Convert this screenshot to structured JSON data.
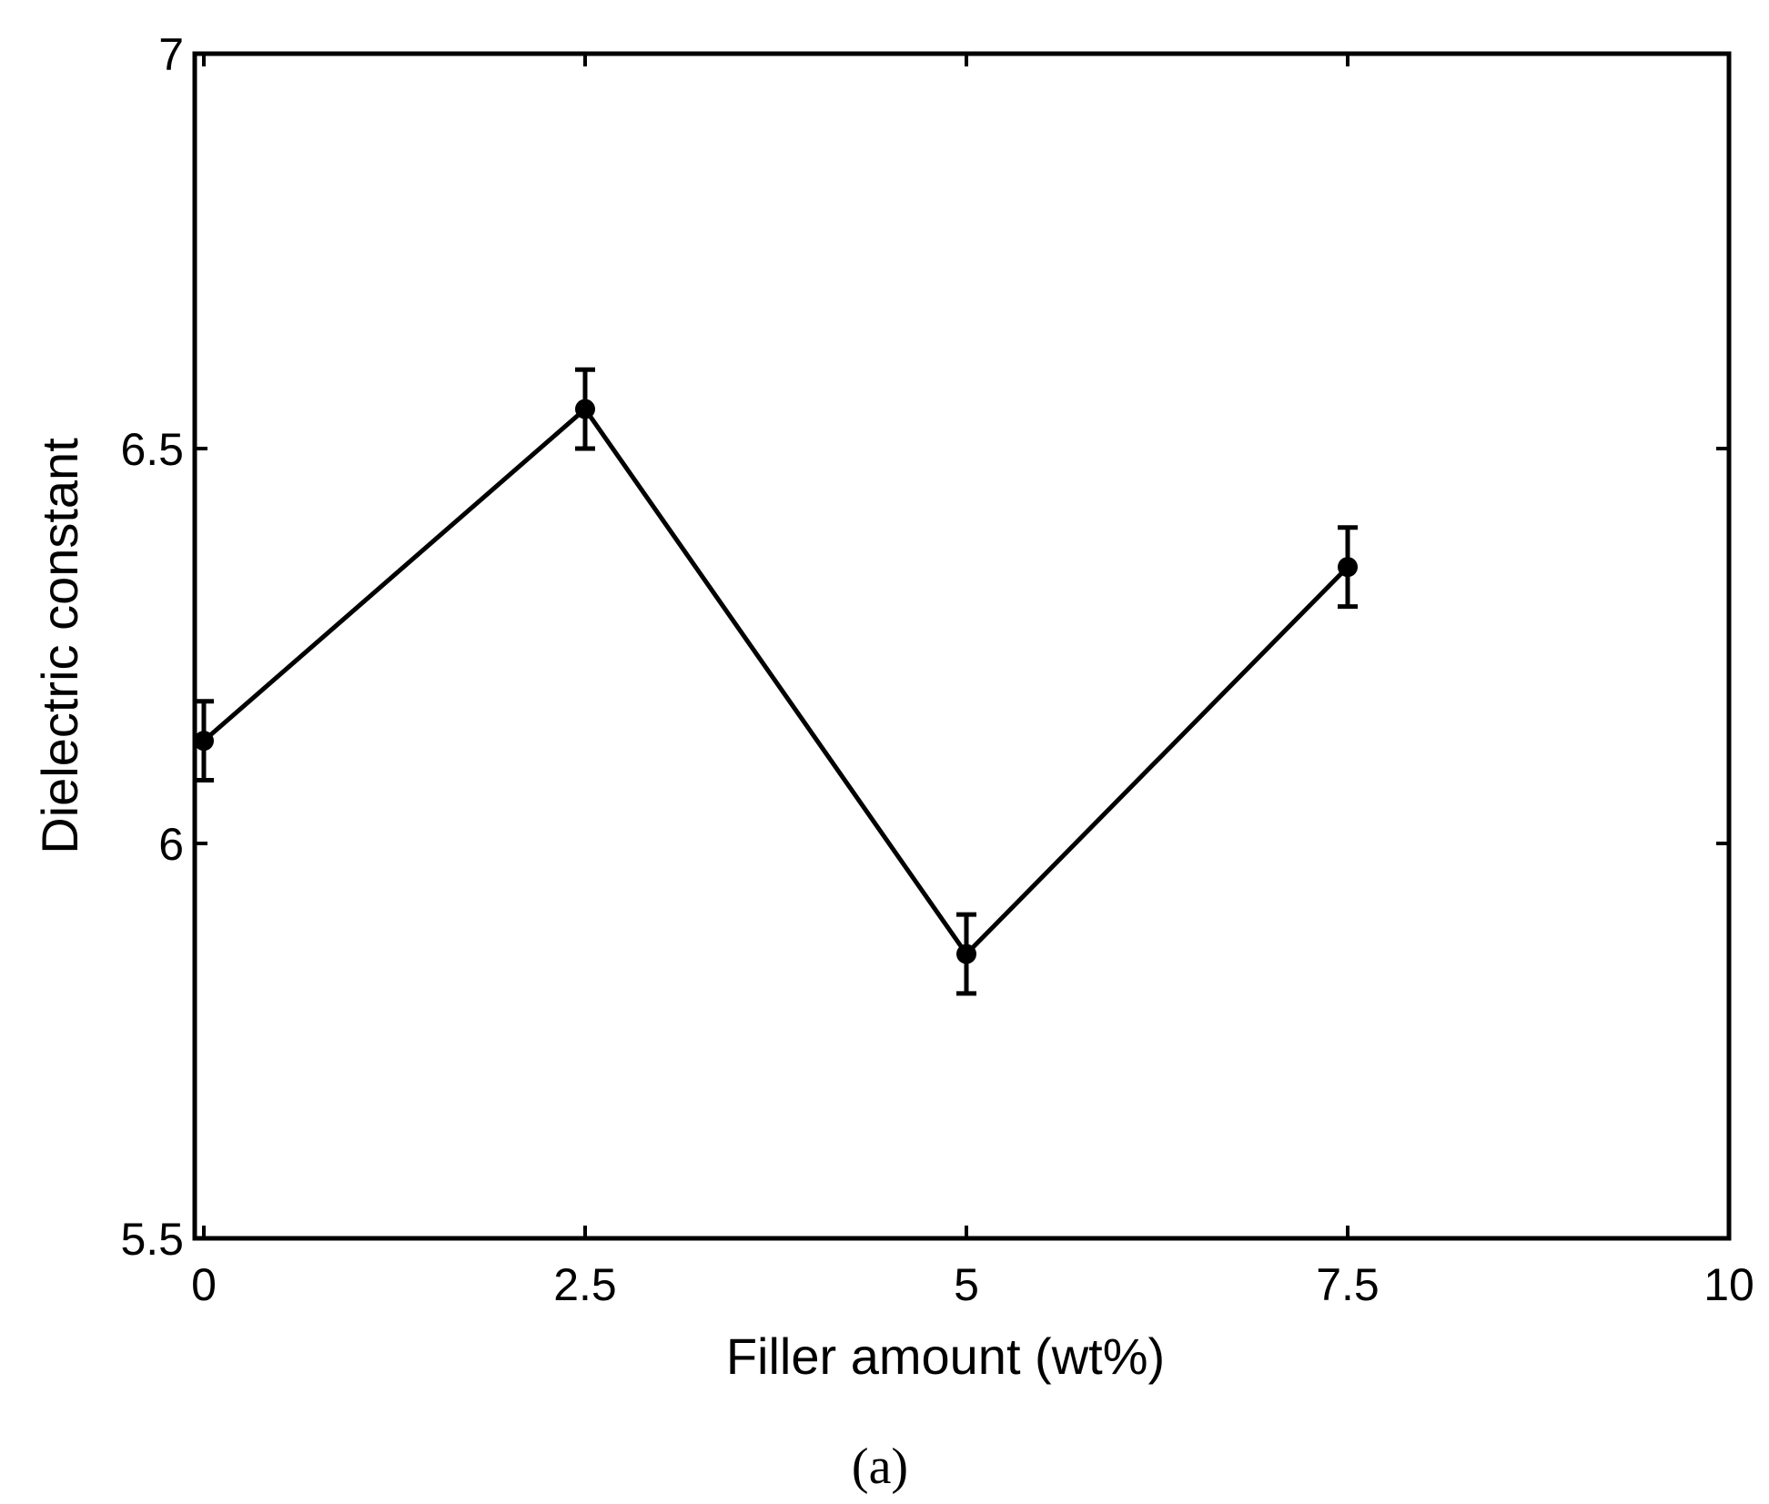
{
  "chart_data": {
    "type": "line",
    "xlabel": "Filler amount (wt%)",
    "ylabel": "Dielectric constant",
    "panel_label": "(a)",
    "xlim": [
      0,
      10
    ],
    "ylim": [
      5.5,
      7
    ],
    "xticks": [
      0,
      2.5,
      5,
      7.5,
      10
    ],
    "xtick_labels": [
      "0",
      "2.5",
      "5",
      "7.5",
      "10"
    ],
    "yticks": [
      5.5,
      6,
      6.5,
      7
    ],
    "ytick_labels": [
      "5.5",
      "6",
      "6.5",
      "7"
    ],
    "grid": false,
    "series": [
      {
        "x": [
          0,
          2.5,
          5,
          7.5
        ],
        "y": [
          6.13,
          6.55,
          5.86,
          6.35
        ],
        "error": [
          0.05,
          0.05,
          0.05,
          0.05
        ],
        "color": "#000000",
        "marker": "circle"
      }
    ]
  }
}
